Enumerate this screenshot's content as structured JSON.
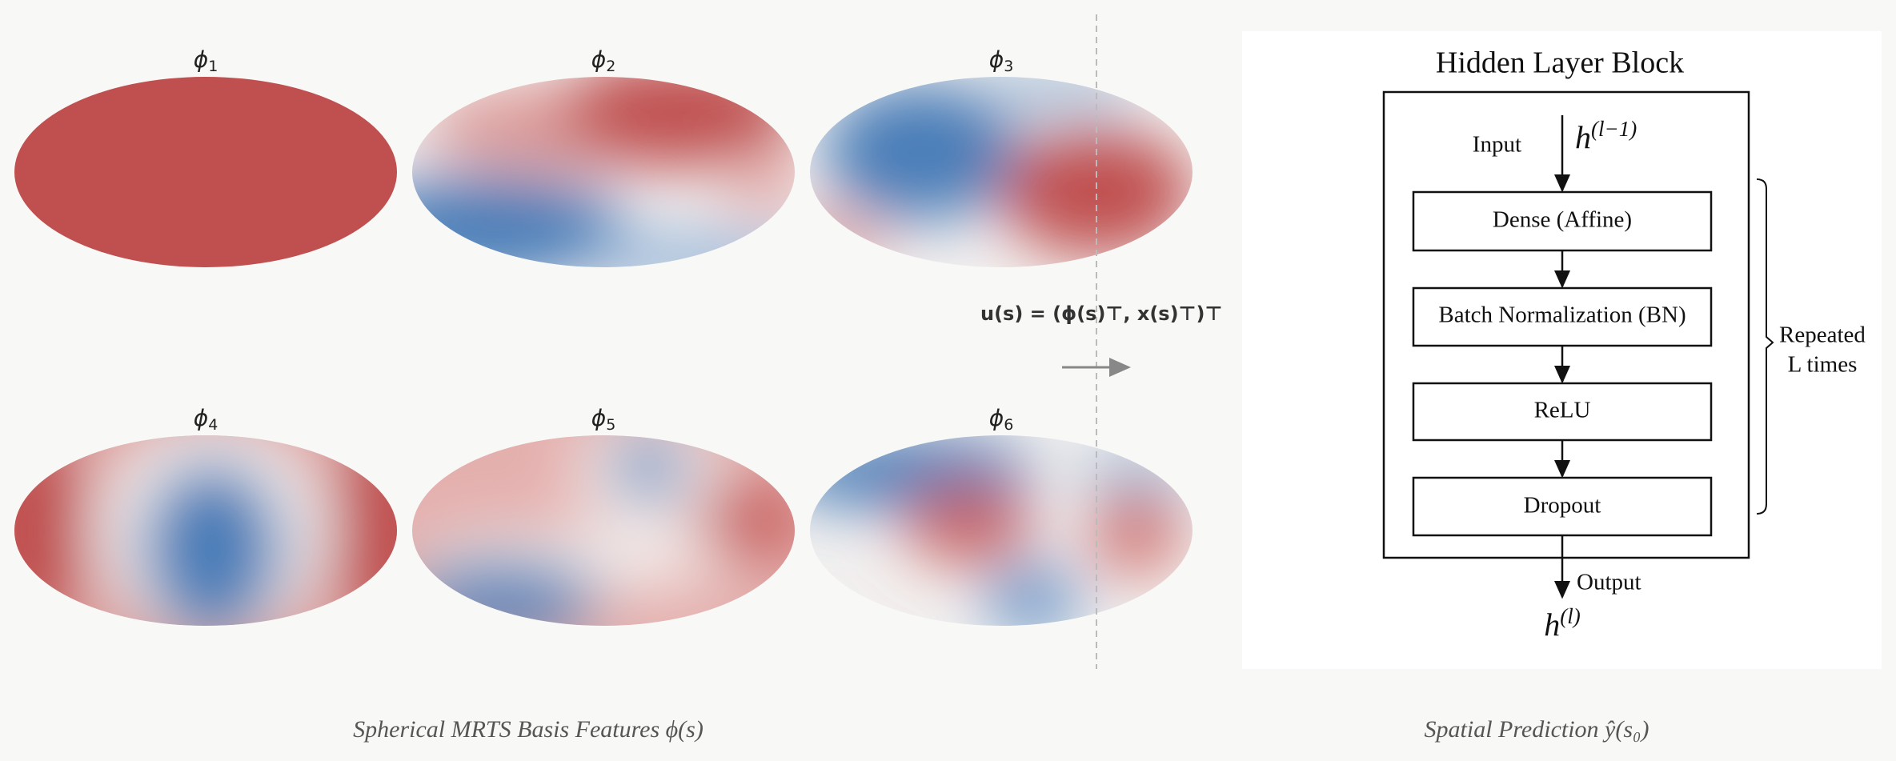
{
  "basis_panels": [
    {
      "symbol": "ϕ",
      "subscript": "1"
    },
    {
      "symbol": "ϕ",
      "subscript": "2"
    },
    {
      "symbol": "ϕ",
      "subscript": "3"
    },
    {
      "symbol": "ϕ",
      "subscript": "4"
    },
    {
      "symbol": "ϕ",
      "subscript": "5"
    },
    {
      "symbol": "ϕ",
      "subscript": "6"
    }
  ],
  "feature_vector": "u(s) = (ϕ(s)⊤,  x(s)⊤)⊤",
  "hidden_layer_block": {
    "title": "Hidden Layer Block",
    "input_label": "Input",
    "input": {
      "base": "h",
      "superscript": "(l−1)"
    },
    "layers": [
      "Dense (Affine)",
      "Batch Normalization (BN)",
      "ReLU",
      "Dropout"
    ],
    "output_label": "Output",
    "output": {
      "base": "h",
      "superscript": "(l)"
    },
    "repeat": [
      "Repeated",
      "L times"
    ]
  },
  "captions": {
    "left": "Spherical MRTS Basis Features  ϕ(s)",
    "right": "Spatial Prediction  ŷ(s₀)"
  }
}
